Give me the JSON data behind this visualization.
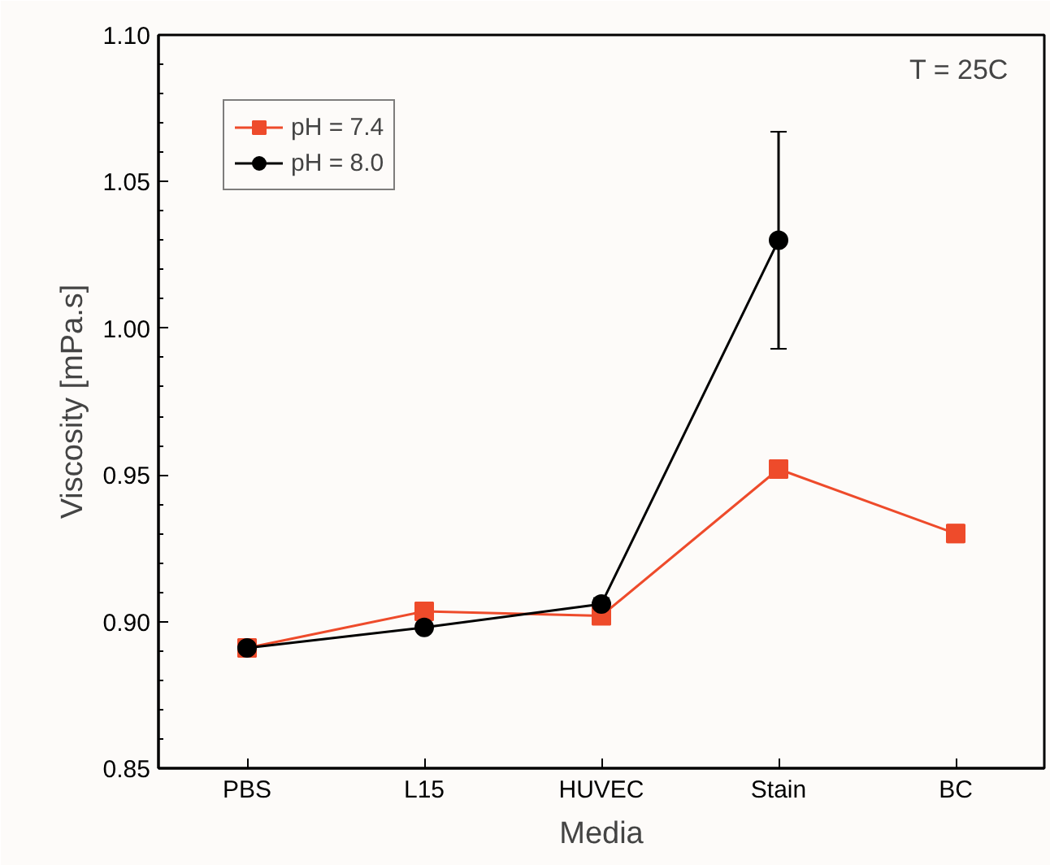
{
  "chart_data": {
    "type": "line",
    "xlabel": "Media",
    "ylabel": "Viscosity [mPa.s]",
    "categories": [
      "PBS",
      "L15",
      "HUVEC",
      "Stain",
      "BC"
    ],
    "series": [
      {
        "name": "pH = 7.4",
        "color": "#ee4b2b",
        "marker": "square",
        "values": [
          0.891,
          0.9035,
          0.902,
          0.952,
          0.93
        ],
        "errors": [
          0.002,
          0.002,
          0.002,
          0.002,
          0.003
        ]
      },
      {
        "name": "pH = 8.0",
        "color": "#000000",
        "marker": "circle",
        "values": [
          0.891,
          0.898,
          0.906,
          1.03,
          null
        ],
        "errors": [
          0.002,
          0.001,
          0.002,
          0.037,
          null
        ]
      }
    ],
    "ylim": [
      0.85,
      1.1
    ],
    "yticks": [
      0.85,
      {
        "value": 0.9,
        "label": "0.90"
      },
      0.95,
      {
        "value": 1.0,
        "label": "1.00"
      },
      1.05,
      {
        "value": 1.1,
        "label": "1.10"
      }
    ],
    "annotations": [
      "T = 25C"
    ],
    "legend": "top left",
    "grid": false,
    "line_style": "solid"
  }
}
